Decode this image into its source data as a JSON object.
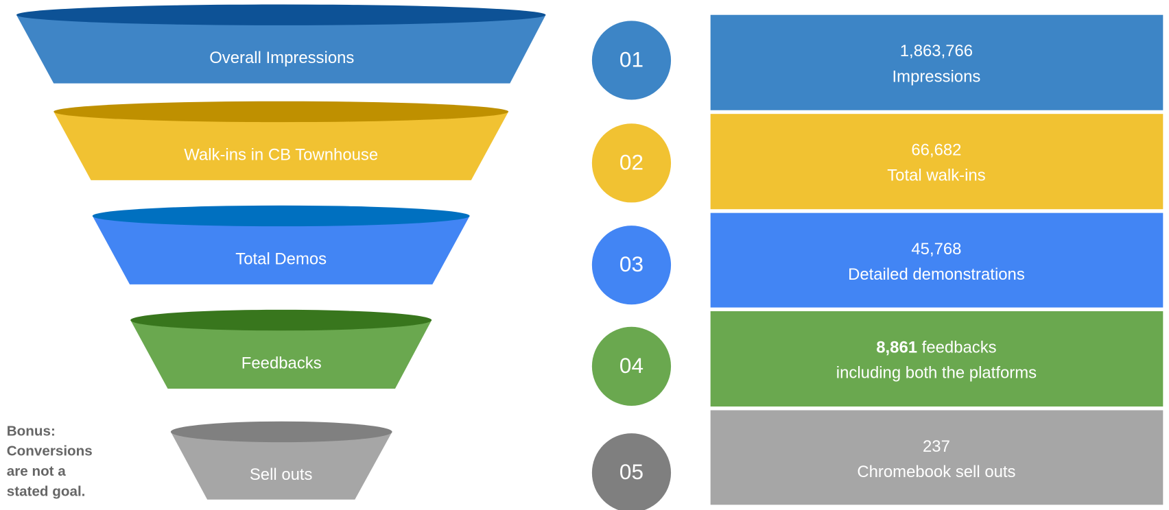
{
  "stages": [
    {
      "label": "Overall Impressions",
      "number": "01",
      "value": "1,863,766",
      "text": "Impressions"
    },
    {
      "label": "Walk-ins in CB Townhouse",
      "number": "02",
      "value": "66,682",
      "text": "Total walk-ins"
    },
    {
      "label": "Total Demos",
      "number": "03",
      "value": "45,768",
      "text": "Detailed  demonstrations"
    },
    {
      "label": "Feedbacks",
      "number": "04",
      "value": "8,861",
      "suffix": "feedbacks",
      "text": "including both the platforms"
    },
    {
      "label": "Sell outs",
      "number": "05",
      "value": "237",
      "text": "Chromebook sell outs"
    }
  ],
  "note": [
    "Bonus:",
    "Conversions",
    "are not a",
    "stated goal."
  ]
}
